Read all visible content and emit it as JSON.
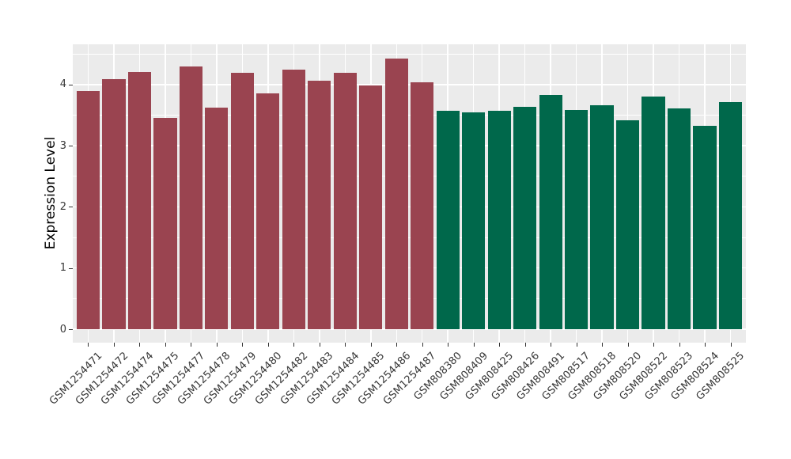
{
  "chart_data": {
    "type": "bar",
    "title": "",
    "xlabel": "",
    "ylabel": "Expression Level",
    "categories": [
      "GSM1254471",
      "GSM1254472",
      "GSM1254474",
      "GSM1254475",
      "GSM1254477",
      "GSM1254478",
      "GSM1254479",
      "GSM1254480",
      "GSM1254482",
      "GSM1254483",
      "GSM1254484",
      "GSM1254485",
      "GSM1254486",
      "GSM1254487",
      "GSM808380",
      "GSM808409",
      "GSM808425",
      "GSM808426",
      "GSM808491",
      "GSM808517",
      "GSM808518",
      "GSM808520",
      "GSM808522",
      "GSM808523",
      "GSM808524",
      "GSM808525"
    ],
    "values": [
      3.9,
      4.09,
      4.2,
      3.45,
      4.3,
      3.62,
      4.19,
      3.86,
      4.24,
      4.06,
      4.19,
      3.98,
      4.42,
      4.03,
      3.57,
      3.54,
      3.57,
      3.64,
      3.83,
      3.58,
      3.66,
      3.42,
      3.8,
      3.61,
      3.33,
      3.71
    ],
    "bar_colors": [
      "#9A4450",
      "#9A4450",
      "#9A4450",
      "#9A4450",
      "#9A4450",
      "#9A4450",
      "#9A4450",
      "#9A4450",
      "#9A4450",
      "#9A4450",
      "#9A4450",
      "#9A4450",
      "#9A4450",
      "#9A4450",
      "#00684B",
      "#00684B",
      "#00684B",
      "#00684B",
      "#00684B",
      "#00684B",
      "#00684B",
      "#00684B",
      "#00684B",
      "#00684B",
      "#00684B",
      "#00684B"
    ],
    "group_colors": {
      "group1_red": "#9A4450",
      "group2_green": "#00684B"
    },
    "yticks": [
      0,
      1,
      2,
      3,
      4
    ],
    "yticks_minor": [
      0.5,
      1.5,
      2.5,
      3.5,
      4.5
    ],
    "ylim": [
      -0.22,
      4.66
    ],
    "grid": "major-and-minor, white on gray panel",
    "legend": "none",
    "panel_bg": "#EBEBEB",
    "grid_color": "#FFFFFF",
    "bar_width_fraction": 0.9
  }
}
